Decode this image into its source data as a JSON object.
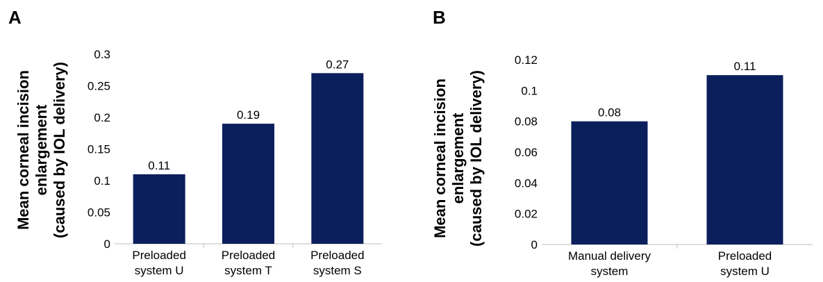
{
  "chart_data": [
    {
      "panel": "A",
      "type": "bar",
      "title": "",
      "ylabel": [
        "Mean corneal incision",
        "enlargement",
        "(caused by IOL delivery)"
      ],
      "xlabel": "",
      "categories": [
        [
          "Preloaded",
          "system U"
        ],
        [
          "Preloaded",
          "system T"
        ],
        [
          "Preloaded",
          "system S"
        ]
      ],
      "values": [
        0.11,
        0.19,
        0.27
      ],
      "data_labels": [
        "0.11",
        "0.19",
        "0.27"
      ],
      "ylim": [
        0,
        0.3
      ],
      "yticks": [
        "0",
        "0.05",
        "0.1",
        "0.15",
        "0.2",
        "0.25",
        "0.3"
      ],
      "bar_color": "#0b1f5c",
      "grid": false,
      "legend": false
    },
    {
      "panel": "B",
      "type": "bar",
      "title": "",
      "ylabel": [
        "Mean corneal incision",
        "enlargement",
        "(caused by IOL delivery)"
      ],
      "xlabel": "",
      "categories": [
        [
          "Manual delivery",
          "system"
        ],
        [
          "Preloaded",
          "system U"
        ]
      ],
      "values": [
        0.08,
        0.11
      ],
      "data_labels": [
        "0.08",
        "0.11"
      ],
      "ylim": [
        0,
        0.12
      ],
      "yticks": [
        "0",
        "0.02",
        "0.04",
        "0.06",
        "0.08",
        "0.1",
        "0.12"
      ],
      "bar_color": "#0b1f5c",
      "grid": false,
      "legend": false
    }
  ]
}
